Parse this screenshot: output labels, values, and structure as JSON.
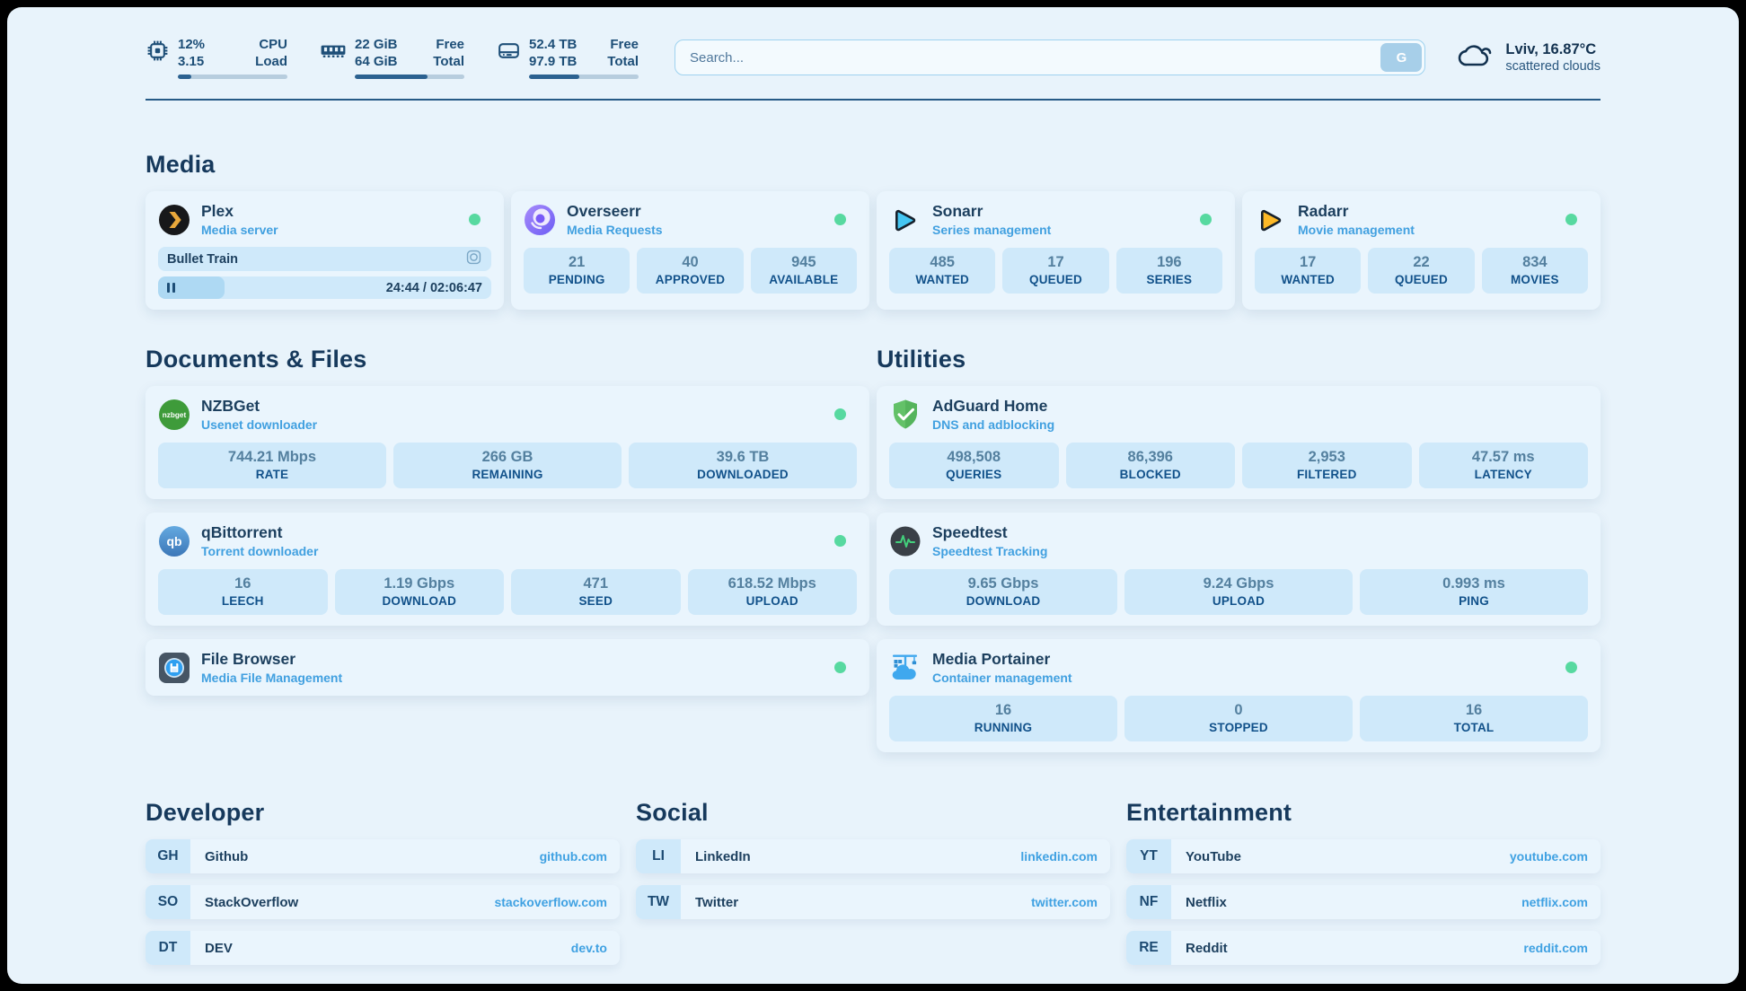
{
  "theme": {
    "page_bg": "#e8f3fb",
    "card_bg": "#eaf5fd",
    "tile_bg": "#cfe9fa",
    "accent": "#3fa1e2",
    "navy": "#1c3f5e",
    "status_online": "#57d9a0"
  },
  "header": {
    "metrics": [
      {
        "name": "cpu",
        "values": [
          "12%",
          "3.15"
        ],
        "labels": [
          "CPU",
          "Load"
        ],
        "progress_pct": 12
      },
      {
        "name": "memory",
        "values": [
          "22 GiB",
          "64 GiB"
        ],
        "labels": [
          "Free",
          "Total"
        ],
        "progress_pct": 66
      },
      {
        "name": "storage",
        "values": [
          "52.4 TB",
          "97.9 TB"
        ],
        "labels": [
          "Free",
          "Total"
        ],
        "progress_pct": 46
      }
    ],
    "search": {
      "placeholder": "Search...",
      "button_label": "G"
    },
    "weather": {
      "location_temp": "Lviv, 16.87°C",
      "condition": "scattered clouds"
    }
  },
  "media": {
    "title": "Media",
    "plex": {
      "title": "Plex",
      "subtitle": "Media server",
      "online": true,
      "now_playing": "Bullet Train",
      "time_display": "24:44 / 02:06:47",
      "progress_pct": 20
    },
    "overseerr": {
      "title": "Overseerr",
      "subtitle": "Media Requests",
      "online": true,
      "stats": [
        {
          "value": "21",
          "label": "PENDING"
        },
        {
          "value": "40",
          "label": "APPROVED"
        },
        {
          "value": "945",
          "label": "AVAILABLE"
        }
      ]
    },
    "sonarr": {
      "title": "Sonarr",
      "subtitle": "Series management",
      "online": true,
      "stats": [
        {
          "value": "485",
          "label": "WANTED"
        },
        {
          "value": "17",
          "label": "QUEUED"
        },
        {
          "value": "196",
          "label": "SERIES"
        }
      ]
    },
    "radarr": {
      "title": "Radarr",
      "subtitle": "Movie management",
      "online": true,
      "stats": [
        {
          "value": "17",
          "label": "WANTED"
        },
        {
          "value": "22",
          "label": "QUEUED"
        },
        {
          "value": "834",
          "label": "MOVIES"
        }
      ]
    }
  },
  "documents": {
    "title": "Documents & Files",
    "nzbget": {
      "title": "NZBGet",
      "subtitle": "Usenet downloader",
      "online": true,
      "stats": [
        {
          "value": "744.21 Mbps",
          "label": "RATE"
        },
        {
          "value": "266 GB",
          "label": "REMAINING"
        },
        {
          "value": "39.6 TB",
          "label": "DOWNLOADED"
        }
      ]
    },
    "qbittorrent": {
      "title": "qBittorrent",
      "subtitle": "Torrent downloader",
      "online": true,
      "stats": [
        {
          "value": "16",
          "label": "LEECH"
        },
        {
          "value": "1.19 Gbps",
          "label": "DOWNLOAD"
        },
        {
          "value": "471",
          "label": "SEED"
        },
        {
          "value": "618.52 Mbps",
          "label": "UPLOAD"
        }
      ]
    },
    "filebrowser": {
      "title": "File Browser",
      "subtitle": "Media File Management",
      "online": true
    }
  },
  "utilities": {
    "title": "Utilities",
    "adguard": {
      "title": "AdGuard Home",
      "subtitle": "DNS and adblocking",
      "stats": [
        {
          "value": "498,508",
          "label": "QUERIES"
        },
        {
          "value": "86,396",
          "label": "BLOCKED"
        },
        {
          "value": "2,953",
          "label": "FILTERED"
        },
        {
          "value": "47.57 ms",
          "label": "LATENCY"
        }
      ]
    },
    "speedtest": {
      "title": "Speedtest",
      "subtitle": "Speedtest Tracking",
      "stats": [
        {
          "value": "9.65 Gbps",
          "label": "DOWNLOAD"
        },
        {
          "value": "9.24 Gbps",
          "label": "UPLOAD"
        },
        {
          "value": "0.993 ms",
          "label": "PING"
        }
      ]
    },
    "portainer": {
      "title": "Media Portainer",
      "subtitle": "Container management",
      "online": true,
      "stats": [
        {
          "value": "16",
          "label": "RUNNING"
        },
        {
          "value": "0",
          "label": "STOPPED"
        },
        {
          "value": "16",
          "label": "TOTAL"
        }
      ]
    }
  },
  "bookmarks": [
    {
      "title": "Developer",
      "links": [
        {
          "abbr": "GH",
          "name": "Github",
          "url": "github.com"
        },
        {
          "abbr": "SO",
          "name": "StackOverflow",
          "url": "stackoverflow.com"
        },
        {
          "abbr": "DT",
          "name": "DEV",
          "url": "dev.to"
        }
      ]
    },
    {
      "title": "Social",
      "links": [
        {
          "abbr": "LI",
          "name": "LinkedIn",
          "url": "linkedin.com"
        },
        {
          "abbr": "TW",
          "name": "Twitter",
          "url": "twitter.com"
        }
      ]
    },
    {
      "title": "Entertainment",
      "links": [
        {
          "abbr": "YT",
          "name": "YouTube",
          "url": "youtube.com"
        },
        {
          "abbr": "NF",
          "name": "Netflix",
          "url": "netflix.com"
        },
        {
          "abbr": "RE",
          "name": "Reddit",
          "url": "reddit.com"
        }
      ]
    }
  ]
}
